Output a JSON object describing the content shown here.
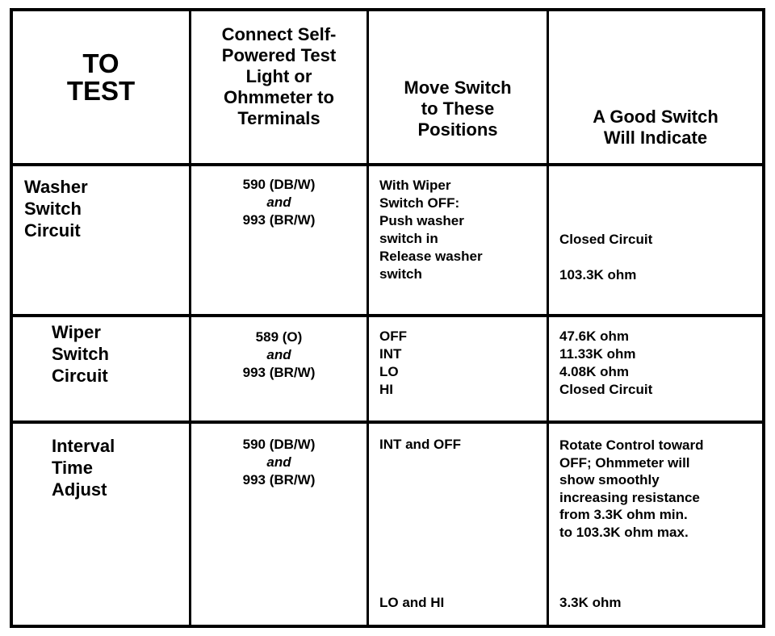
{
  "table": {
    "headers": {
      "col1_line1": "TO",
      "col1_line2": "TEST",
      "col2": [
        "Connect Self-",
        "Powered Test",
        "Light or",
        "Ohmmeter to",
        "Terminals"
      ],
      "col3": [
        "Move Switch",
        "to These",
        "Positions"
      ],
      "col4": [
        "A Good Switch",
        "Will Indicate"
      ]
    },
    "rows": [
      {
        "label": [
          "Washer",
          "Switch",
          "Circuit"
        ],
        "terminals": {
          "first": "590 (DB/W)",
          "joiner": "and",
          "second": "993  (BR/W)"
        },
        "positions": [
          "With Wiper",
          "Switch OFF:",
          "Push washer",
          "switch in",
          "Release washer",
          "switch"
        ],
        "indications": [
          "Closed Circuit",
          "103.3K ohm"
        ]
      },
      {
        "label": [
          "Wiper",
          "Switch",
          "Circuit"
        ],
        "terminals": {
          "first": "589 (O)",
          "joiner": "and",
          "second": "993 (BR/W)"
        },
        "positions": [
          "OFF",
          "INT",
          "LO",
          "HI"
        ],
        "indications": [
          "47.6K ohm",
          "11.33K ohm",
          "4.08K ohm",
          "Closed Circuit"
        ]
      },
      {
        "label": [
          "Interval",
          "Time",
          "Adjust"
        ],
        "terminals": {
          "first": "590 (DB/W)",
          "joiner": "and",
          "second": "993 (BR/W)"
        },
        "positions": [
          "INT and OFF",
          "LO and HI"
        ],
        "indications": [
          "Rotate Control toward",
          "OFF; Ohmmeter will",
          "show smoothly",
          "increasing resistance",
          "from 3.3K ohm min.",
          "to 103.3K ohm max.",
          "3.3K ohm"
        ]
      }
    ]
  }
}
